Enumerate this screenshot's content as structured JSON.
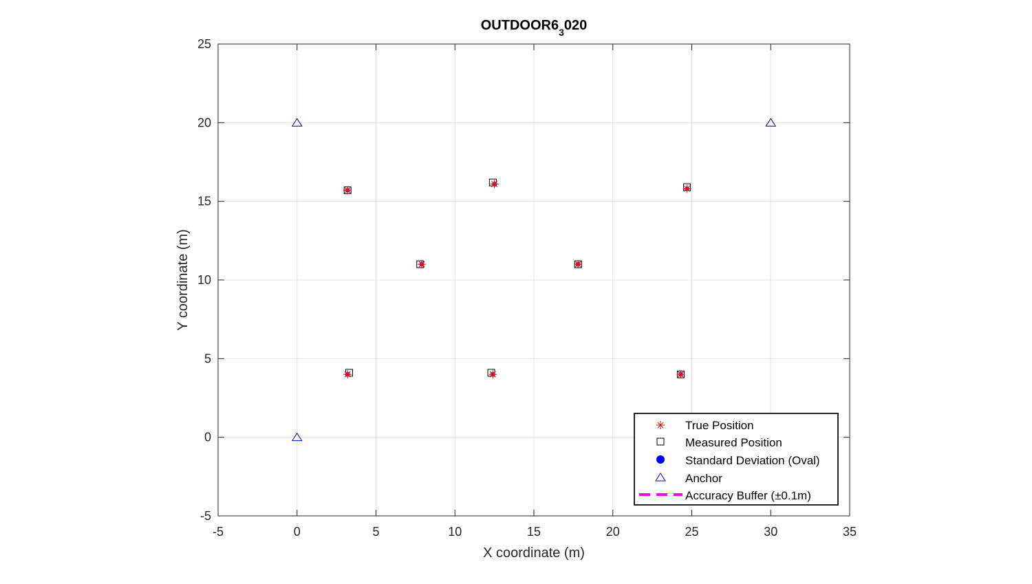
{
  "chart_data": {
    "type": "scatter",
    "title_main": "OUTDOOR6",
    "title_sub": "3",
    "title_tail": "020",
    "xlabel": "X coordinate (m)",
    "ylabel": "Y coordinate (m)",
    "xlim": [
      -5,
      35
    ],
    "ylim": [
      -5,
      25
    ],
    "xticks": [
      -5,
      0,
      5,
      10,
      15,
      20,
      25,
      30,
      35
    ],
    "yticks": [
      -5,
      0,
      5,
      10,
      15,
      20,
      25
    ],
    "grid": true,
    "legend_position": "bottom-right",
    "colors": {
      "true_position": "#d01010",
      "true_position_accent": "#e0207a",
      "measured_position": "#000000",
      "std_dev": "#0000ff",
      "anchor": "#0000cc",
      "accuracy_buffer": "#ff00ff"
    },
    "series": [
      {
        "name": "True Position",
        "marker": "asterisk",
        "points": [
          {
            "x": 3.2,
            "y": 15.7
          },
          {
            "x": 12.5,
            "y": 16.1
          },
          {
            "x": 24.7,
            "y": 15.8
          },
          {
            "x": 7.9,
            "y": 11.0
          },
          {
            "x": 17.8,
            "y": 11.0
          },
          {
            "x": 3.2,
            "y": 4.0
          },
          {
            "x": 12.4,
            "y": 4.0
          },
          {
            "x": 24.3,
            "y": 4.0
          }
        ]
      },
      {
        "name": "Measured Position",
        "marker": "square",
        "points": [
          {
            "x": 3.2,
            "y": 15.7
          },
          {
            "x": 12.4,
            "y": 16.2
          },
          {
            "x": 24.7,
            "y": 15.9
          },
          {
            "x": 7.8,
            "y": 11.0
          },
          {
            "x": 17.8,
            "y": 11.0
          },
          {
            "x": 3.3,
            "y": 4.1
          },
          {
            "x": 12.3,
            "y": 4.1
          },
          {
            "x": 24.3,
            "y": 4.0
          }
        ]
      },
      {
        "name": "Standard Deviation (Oval)",
        "marker": "filled-circle",
        "points": []
      },
      {
        "name": "Anchor",
        "marker": "triangle",
        "points": [
          {
            "x": 0,
            "y": 20
          },
          {
            "x": 30,
            "y": 20
          },
          {
            "x": 0,
            "y": 0
          }
        ]
      },
      {
        "name": "Accuracy Buffer (±0.1m)",
        "marker": "dashed-line",
        "points": []
      }
    ]
  }
}
